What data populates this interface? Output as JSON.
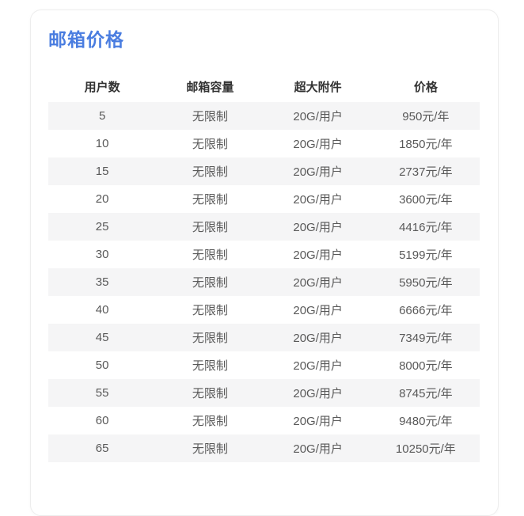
{
  "colors": {
    "accent_blue": "#4a7de0",
    "stripe": "#f5f5f6",
    "header_text": "#333333",
    "body_text": "#595959",
    "card_border": "#ededed",
    "page_background": "#ffffff"
  },
  "card": {
    "title": "邮箱价格"
  },
  "table": {
    "headers": [
      "用户数",
      "邮箱容量",
      "超大附件",
      "价格"
    ],
    "rows": [
      [
        "5",
        "无限制",
        "20G/用户",
        "950元/年"
      ],
      [
        "10",
        "无限制",
        "20G/用户",
        "1850元/年"
      ],
      [
        "15",
        "无限制",
        "20G/用户",
        "2737元/年"
      ],
      [
        "20",
        "无限制",
        "20G/用户",
        "3600元/年"
      ],
      [
        "25",
        "无限制",
        "20G/用户",
        "4416元/年"
      ],
      [
        "30",
        "无限制",
        "20G/用户",
        "5199元/年"
      ],
      [
        "35",
        "无限制",
        "20G/用户",
        "5950元/年"
      ],
      [
        "40",
        "无限制",
        "20G/用户",
        "6666元/年"
      ],
      [
        "45",
        "无限制",
        "20G/用户",
        "7349元/年"
      ],
      [
        "50",
        "无限制",
        "20G/用户",
        "8000元/年"
      ],
      [
        "55",
        "无限制",
        "20G/用户",
        "8745元/年"
      ],
      [
        "60",
        "无限制",
        "20G/用户",
        "9480元/年"
      ],
      [
        "65",
        "无限制",
        "20G/用户",
        "10250元/年"
      ]
    ]
  },
  "chart_data": {
    "type": "table",
    "title": "邮箱价格",
    "columns": [
      "用户数",
      "邮箱容量",
      "超大附件",
      "价格"
    ],
    "rows": [
      [
        5,
        "无限制",
        "20G/用户",
        "950元/年"
      ],
      [
        10,
        "无限制",
        "20G/用户",
        "1850元/年"
      ],
      [
        15,
        "无限制",
        "20G/用户",
        "2737元/年"
      ],
      [
        20,
        "无限制",
        "20G/用户",
        "3600元/年"
      ],
      [
        25,
        "无限制",
        "20G/用户",
        "4416元/年"
      ],
      [
        30,
        "无限制",
        "20G/用户",
        "5199元/年"
      ],
      [
        35,
        "无限制",
        "20G/用户",
        "5950元/年"
      ],
      [
        40,
        "无限制",
        "20G/用户",
        "6666元/年"
      ],
      [
        45,
        "无限制",
        "20G/用户",
        "7349元/年"
      ],
      [
        50,
        "无限制",
        "20G/用户",
        "8000元/年"
      ],
      [
        55,
        "无限制",
        "20G/用户",
        "8745元/年"
      ],
      [
        60,
        "无限制",
        "20G/用户",
        "9480元/年"
      ],
      [
        65,
        "无限制",
        "20G/用户",
        "10250元/年"
      ]
    ],
    "users": [
      5,
      10,
      15,
      20,
      25,
      30,
      35,
      40,
      45,
      50,
      55,
      60,
      65
    ],
    "prices_cny_per_year": [
      950,
      1850,
      2737,
      3600,
      4416,
      5199,
      5950,
      6666,
      7349,
      8000,
      8745,
      9480,
      10250
    ],
    "mailbox_capacity_all_rows": "无限制",
    "large_attachment_all_rows": "20G/用户",
    "row_striping": "odd rows shaded"
  }
}
